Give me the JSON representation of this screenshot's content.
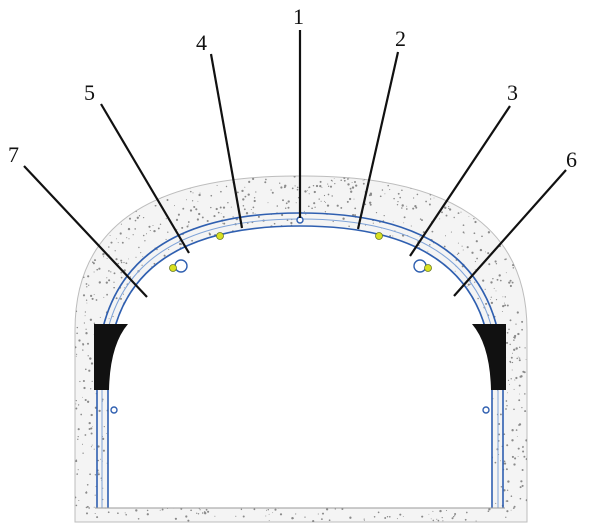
{
  "diagram": {
    "callouts": [
      {
        "id": "1",
        "label": "1"
      },
      {
        "id": "2",
        "label": "2"
      },
      {
        "id": "3",
        "label": "3"
      },
      {
        "id": "4",
        "label": "4"
      },
      {
        "id": "5",
        "label": "5"
      },
      {
        "id": "6",
        "label": "6"
      },
      {
        "id": "7",
        "label": "7"
      }
    ],
    "colors": {
      "rock": "#8a8a8a",
      "lining": "#2f5fb0",
      "lining_fill": "#dbe7f7",
      "block": "#111111",
      "node": "#d8e020",
      "leader": "#111111"
    }
  }
}
